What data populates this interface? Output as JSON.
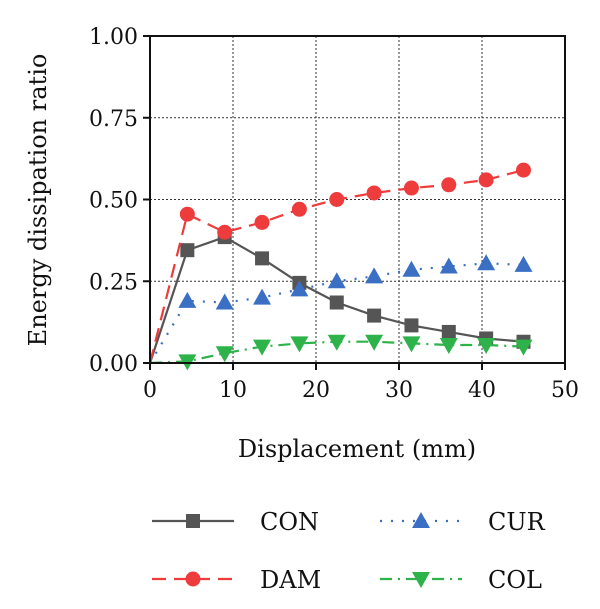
{
  "chart_data": {
    "type": "line",
    "xlabel": "Displacement (mm)",
    "ylabel": "Energy dissipation ratio",
    "xlim": [
      0,
      50
    ],
    "ylim": [
      0,
      1
    ],
    "xticks": [
      0,
      10,
      20,
      30,
      40,
      50
    ],
    "yticks": [
      0.0,
      0.25,
      0.5,
      0.75,
      1.0
    ],
    "xtick_labels": [
      "0",
      "10",
      "20",
      "30",
      "40",
      "50"
    ],
    "ytick_labels": [
      "0.00",
      "0.25",
      "0.50",
      "0.75",
      "1.00"
    ],
    "grid": true,
    "legend_position": "bottom",
    "series": [
      {
        "name": "CON",
        "color": "#555555",
        "marker": "square",
        "line": "solid",
        "x": [
          0,
          4.5,
          9,
          13.5,
          18,
          22.5,
          27,
          31.5,
          36,
          40.5,
          45
        ],
        "y": [
          0.0,
          0.345,
          0.385,
          0.32,
          0.245,
          0.185,
          0.145,
          0.115,
          0.095,
          0.075,
          0.065
        ]
      },
      {
        "name": "DAM",
        "color": "#ee3b3b",
        "marker": "circle",
        "line": "dash",
        "x": [
          0,
          4.5,
          9,
          13.5,
          18,
          22.5,
          27,
          31.5,
          36,
          40.5,
          45
        ],
        "y": [
          0.0,
          0.455,
          0.4,
          0.43,
          0.47,
          0.5,
          0.52,
          0.535,
          0.545,
          0.56,
          0.59
        ]
      },
      {
        "name": "CUR",
        "color": "#3a6fc4",
        "marker": "triangle-up",
        "line": "dot",
        "x": [
          0,
          4.5,
          9,
          13.5,
          18,
          22.5,
          27,
          31.5,
          36,
          40.5,
          45
        ],
        "y": [
          0.0,
          0.19,
          0.185,
          0.2,
          0.225,
          0.25,
          0.265,
          0.285,
          0.295,
          0.305,
          0.3
        ]
      },
      {
        "name": "COL",
        "color": "#2db34a",
        "marker": "triangle-down",
        "line": "dashdot",
        "x": [
          0,
          4.5,
          9,
          13.5,
          18,
          22.5,
          27,
          31.5,
          36,
          40.5,
          45
        ],
        "y": [
          0.0,
          0.005,
          0.03,
          0.05,
          0.06,
          0.065,
          0.065,
          0.06,
          0.055,
          0.055,
          0.05
        ]
      }
    ]
  }
}
